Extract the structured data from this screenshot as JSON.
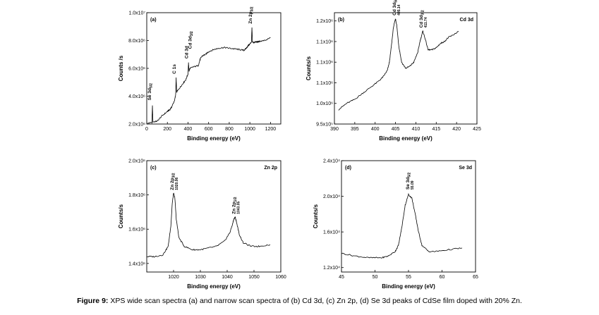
{
  "caption": {
    "label": "Figure 9:",
    "text": "XPS wide scan spectra (a) and narrow scan spectra of (b) Cd 3d, (c) Zn 2p, (d) Se 3d peaks of CdSe film doped with 20% Zn."
  },
  "colors": {
    "line": "#000000",
    "background": "#ffffff"
  },
  "chart_data": [
    {
      "id": "a",
      "type": "line",
      "panel_label": "(a)",
      "title": "",
      "xlabel": "Binding energy (eV)",
      "ylabel": "Counts /s",
      "xlim": [
        0,
        1300
      ],
      "ylim": [
        2000000.0,
        10000000.0
      ],
      "xticks": [
        0,
        200,
        400,
        600,
        800,
        1000,
        1200
      ],
      "xtick_labels": [
        "0",
        "200",
        "400",
        "600",
        "800",
        "1000",
        "1200"
      ],
      "yticks": [
        2000000.0,
        4000000.0,
        6000000.0,
        8000000.0,
        10000000.0
      ],
      "ytick_labels": [
        "2.0x10⁶",
        "4.0x10⁶",
        "6.0x10⁶",
        "8.0x10⁶",
        "1.0x10⁷"
      ],
      "x": [
        10,
        50,
        55,
        60,
        100,
        150,
        200,
        220,
        240,
        270,
        280,
        285,
        290,
        320,
        350,
        380,
        400,
        405,
        410,
        420,
        450,
        500,
        520,
        540,
        570,
        600,
        650,
        700,
        750,
        800,
        850,
        900,
        940,
        960,
        980,
        1000,
        1015,
        1020,
        1025,
        1040,
        1060,
        1080,
        1100,
        1150,
        1200
      ],
      "y": [
        2050000.0,
        2120000.0,
        3300000.0,
        2150000.0,
        2200000.0,
        2600000.0,
        2900000.0,
        3000000.0,
        3200000.0,
        3700000.0,
        4100000.0,
        5300000.0,
        4300000.0,
        4600000.0,
        4900000.0,
        5200000.0,
        5600000.0,
        6400000.0,
        5800000.0,
        6000000.0,
        6100000.0,
        6200000.0,
        6700000.0,
        6900000.0,
        7000000.0,
        7200000.0,
        7350000.0,
        7450000.0,
        7500000.0,
        7450000.0,
        7400000.0,
        7350000.0,
        7300000.0,
        7400000.0,
        7600000.0,
        7750000.0,
        7900000.0,
        8900000.0,
        7900000.0,
        7850000.0,
        7900000.0,
        7900000.0,
        7950000.0,
        8000000.0,
        8200000.0
      ],
      "annotations": [
        {
          "text": "Se 3d",
          "sub": "5/2",
          "x": 40,
          "y": 3600000.0
        },
        {
          "text": "C 1s",
          "x": 280,
          "y": 5500000.0
        },
        {
          "text": "Cd 3d",
          "sub": "",
          "x": 400,
          "y": 6600000.0
        },
        {
          "text": "Cd 3d",
          "sub": "3/2",
          "x": 435,
          "y": 7300000.0
        },
        {
          "text": "Zn 2p",
          "sub": "3/2",
          "x": 1020,
          "y": 9100000.0
        }
      ]
    },
    {
      "id": "b",
      "type": "line",
      "panel_label": "(b)",
      "title": "Cd 3d",
      "xlabel": "Binding energy (eV)",
      "ylabel": "Counts/s",
      "xlim": [
        390,
        425
      ],
      "ylim": [
        950000.0,
        1220000.0
      ],
      "xticks": [
        390,
        395,
        400,
        405,
        410,
        415,
        420,
        425
      ],
      "xtick_labels": [
        "390",
        "395",
        "400",
        "405",
        "410",
        "415",
        "420",
        "425"
      ],
      "yticks": [
        950000.0,
        1000000.0,
        1050000.0,
        1100000.0,
        1150000.0,
        1200000.0
      ],
      "ytick_labels": [
        "9.5x10⁵",
        "1.0x10⁶",
        "1.1x10⁶",
        "1.1x10⁶",
        "1.1x10⁶",
        "1.2x10⁶"
      ],
      "x": [
        391,
        393,
        395,
        397,
        399,
        401,
        402,
        403,
        403.5,
        404,
        404.5,
        405,
        405.3,
        405.8,
        406.5,
        407.5,
        408.5,
        409.5,
        410.5,
        411,
        411.7,
        412.2,
        413,
        414,
        415,
        416,
        417,
        418,
        419,
        420.5
      ],
      "y": [
        985000.0,
        1000000.0,
        1010000.0,
        1025000.0,
        1040000.0,
        1055000.0,
        1065000.0,
        1080000.0,
        1100000.0,
        1140000.0,
        1185000.0,
        1205000.0,
        1190000.0,
        1140000.0,
        1100000.0,
        1085000.0,
        1090000.0,
        1100000.0,
        1125000.0,
        1150000.0,
        1175000.0,
        1160000.0,
        1130000.0,
        1130000.0,
        1135000.0,
        1145000.0,
        1150000.0,
        1160000.0,
        1165000.0,
        1175000.0
      ],
      "annotations": [
        {
          "text": "Cd 3d",
          "sub": "5/2",
          "value": "405.14",
          "x": 405.1,
          "y": 1210000.0
        },
        {
          "text": "Cd 3d",
          "sub": "3/2",
          "value": "411.74",
          "x": 411.7,
          "y": 1180000.0
        }
      ]
    },
    {
      "id": "c",
      "type": "line",
      "panel_label": "(c)",
      "title": "Zn 2p",
      "xlabel": "Binding energy (eV)",
      "ylabel": "Counts/s",
      "xlim": [
        1010,
        1060
      ],
      "ylim": [
        1350000.0,
        2000000.0
      ],
      "xticks": [
        1020,
        1030,
        1040,
        1050,
        1060
      ],
      "xtick_labels": [
        "1020",
        "1030",
        "1040",
        "1050",
        "1060"
      ],
      "yticks": [
        1400000.0,
        1600000.0,
        1800000.0,
        2000000.0
      ],
      "ytick_labels": [
        "1.4x10⁶",
        "1.6x10⁶",
        "1.8x10⁶",
        "2.0x10⁶"
      ],
      "x": [
        1010,
        1013,
        1016,
        1018,
        1019,
        1019.5,
        1020,
        1020.5,
        1021,
        1022,
        1024,
        1027,
        1030,
        1033,
        1036,
        1039,
        1041,
        1042,
        1042.5,
        1043,
        1043.5,
        1044.5,
        1046,
        1049,
        1052,
        1056
      ],
      "y": [
        1440000.0,
        1440000.0,
        1450000.0,
        1500000.0,
        1620000.0,
        1750000.0,
        1810000.0,
        1780000.0,
        1660000.0,
        1550000.0,
        1500000.0,
        1480000.0,
        1480000.0,
        1490000.0,
        1500000.0,
        1530000.0,
        1580000.0,
        1630000.0,
        1660000.0,
        1670000.0,
        1640000.0,
        1570000.0,
        1520000.0,
        1500000.0,
        1500000.0,
        1510000.0
      ],
      "annotations": [
        {
          "text": "Zn 2p",
          "sub": "3/2",
          "value": "1020.06",
          "x": 1020,
          "y": 1820000.0
        },
        {
          "text": "Zn 2p",
          "sub": "1/2",
          "value": "1043.05",
          "x": 1043,
          "y": 1680000.0
        }
      ]
    },
    {
      "id": "d",
      "type": "line",
      "panel_label": "(d)",
      "title": "Se 3d",
      "xlabel": "Binding energy (eV)",
      "ylabel": "Counts/s",
      "xlim": [
        45,
        65
      ],
      "ylim": [
        11500.0,
        24000.0
      ],
      "xticks": [
        45,
        50,
        55,
        60,
        65
      ],
      "xtick_labels": [
        "45",
        "50",
        "55",
        "60",
        "65"
      ],
      "yticks": [
        12000.0,
        16000.0,
        20000.0,
        24000.0
      ],
      "ytick_labels": [
        "1.2x10⁴",
        "1.6x10⁴",
        "2.0x10⁴",
        "2.4x10⁴"
      ],
      "x": [
        45,
        47,
        49,
        51,
        52,
        53,
        53.5,
        54,
        54.5,
        55,
        55.5,
        56,
        56.5,
        57,
        58,
        59,
        61,
        63
      ],
      "y": [
        13600.0,
        13300.0,
        13100.0,
        13100.0,
        13300.0,
        13800.0,
        14500.0,
        16500.0,
        19000.0,
        20200.0,
        19800.0,
        18000.0,
        16000.0,
        14500.0,
        13800.0,
        13800.0,
        14000.0,
        14200.0
      ],
      "annotations": [
        {
          "text": "Se 3d",
          "sub": "5/2",
          "value": "55.09",
          "x": 55.1,
          "y": 20600.0
        }
      ]
    }
  ]
}
